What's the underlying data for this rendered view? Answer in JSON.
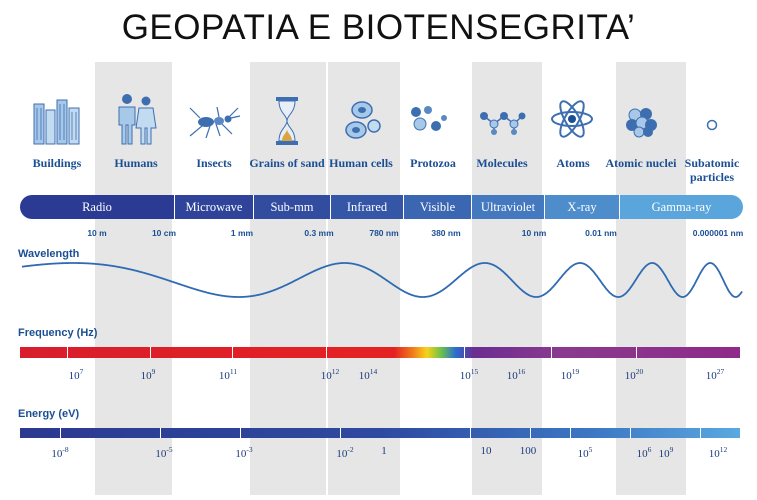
{
  "title": "GEOPATIA E BIOTENSEGRITA’",
  "objects": [
    {
      "label": "Buildings",
      "icon": "buildings-icon"
    },
    {
      "label": "Humans",
      "icon": "humans-icon"
    },
    {
      "label": "Insects",
      "icon": "insect-icon"
    },
    {
      "label": "Grains of sand",
      "icon": "hourglass-icon"
    },
    {
      "label": "Human cells",
      "icon": "cells-icon"
    },
    {
      "label": "Protozoa",
      "icon": "protozoa-icon"
    },
    {
      "label": "Molecules",
      "icon": "molecule-icon"
    },
    {
      "label": "Atoms",
      "icon": "atom-icon"
    },
    {
      "label": "Atomic nuclei",
      "icon": "nucleus-icon"
    },
    {
      "label": "Subatomic particles",
      "icon": "particle-icon"
    }
  ],
  "bands": [
    {
      "label": "Radio",
      "color": "#2b3a92"
    },
    {
      "label": "Microwave",
      "color": "#2e4399"
    },
    {
      "label": "Sub-mm",
      "color": "#324c9f"
    },
    {
      "label": "Infrared",
      "color": "#3556a6"
    },
    {
      "label": "Visible",
      "color": "#3b66b2"
    },
    {
      "label": "Ultraviolet",
      "color": "#4579bf"
    },
    {
      "label": "X-ray",
      "color": "#4d8dcc"
    },
    {
      "label": "Gamma-ray",
      "color": "#5aa5dc"
    }
  ],
  "wavelength": {
    "label": "Wavelength",
    "ticks": [
      "10 m",
      "10 cm",
      "1 mm",
      "0.3 mm",
      "780 nm",
      "380 nm",
      "10 nm",
      "0.01 nm",
      "0.000001 nm"
    ]
  },
  "frequency": {
    "label": "Frequency (Hz)",
    "ticks": [
      {
        "base": "10",
        "exp": "7"
      },
      {
        "base": "10",
        "exp": "9"
      },
      {
        "base": "10",
        "exp": "11"
      },
      {
        "base": "10",
        "exp": "12"
      },
      {
        "base": "10",
        "exp": "14"
      },
      {
        "base": "10",
        "exp": "15"
      },
      {
        "base": "10",
        "exp": "16"
      },
      {
        "base": "10",
        "exp": "19"
      },
      {
        "base": "10",
        "exp": "20"
      },
      {
        "base": "10",
        "exp": "27"
      }
    ]
  },
  "energy": {
    "label": "Energy (eV)",
    "ticks": [
      {
        "base": "10",
        "exp": "-8"
      },
      {
        "base": "10",
        "exp": "-5"
      },
      {
        "base": "10",
        "exp": "-3"
      },
      {
        "base": "10",
        "exp": "-2"
      },
      {
        "base": "1",
        "exp": ""
      },
      {
        "base": "10",
        "exp": ""
      },
      {
        "base": "100",
        "exp": ""
      },
      {
        "base": "10",
        "exp": "5"
      },
      {
        "base": "10",
        "exp": "6"
      },
      {
        "base": "10",
        "exp": "9"
      },
      {
        "base": "10",
        "exp": "12"
      }
    ]
  }
}
